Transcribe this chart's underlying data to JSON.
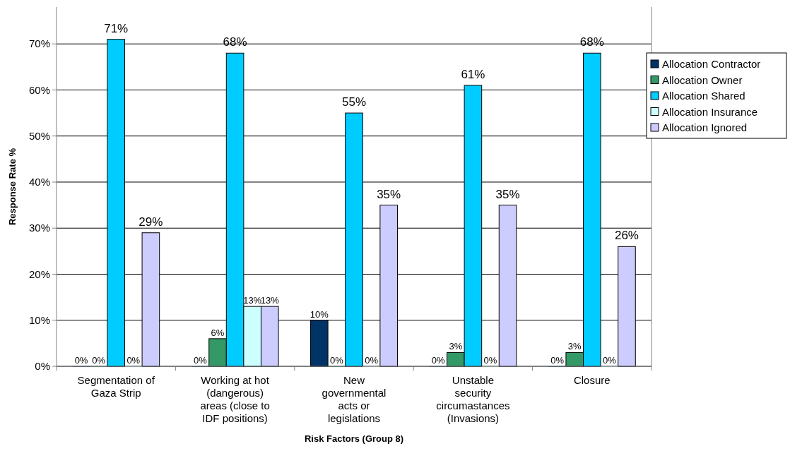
{
  "chart_data": {
    "type": "bar",
    "xlabel": "Risk Factors (Group 8)",
    "ylabel": "Response Rate %",
    "categories": [
      "Segmentation of Gaza Strip",
      "Working at hot (dangerous) areas (close to IDF positions)",
      "New governmental acts or legislations",
      "Unstable security circumastances (Invasions)",
      "Closure"
    ],
    "series": [
      {
        "name": "Allocation Contractor",
        "color": "#003366",
        "values": [
          0,
          0,
          10,
          0,
          0
        ],
        "value_labels": [
          "0%",
          "0%",
          "10%",
          "0%",
          "0%"
        ]
      },
      {
        "name": "Allocation Owner",
        "color": "#339966",
        "values": [
          0,
          6,
          0,
          3,
          3
        ],
        "value_labels": [
          "0%",
          "6%",
          "0%",
          "3%",
          "3%"
        ]
      },
      {
        "name": "Allocation Shared",
        "color": "#00ccff",
        "values": [
          71,
          68,
          55,
          61,
          68
        ],
        "value_labels": [
          "71%",
          "68%",
          "55%",
          "61%",
          "68%"
        ]
      },
      {
        "name": "Allocation Insurance",
        "color": "#ccffff",
        "values": [
          0,
          13,
          0,
          0,
          0
        ],
        "value_labels": [
          "0%",
          "13%",
          "0%",
          "0%",
          "0%"
        ]
      },
      {
        "name": "Allocation Ignored",
        "color": "#ccccff",
        "values": [
          29,
          13,
          35,
          35,
          26
        ],
        "value_labels": [
          "29%",
          "13%",
          "35%",
          "35%",
          "26%"
        ]
      }
    ],
    "ylim": [
      0,
      78
    ],
    "yticks": [
      {
        "value": 0,
        "label": "0%"
      },
      {
        "value": 10,
        "label": "10%"
      },
      {
        "value": 20,
        "label": "20%"
      },
      {
        "value": 30,
        "label": "30%"
      },
      {
        "value": 40,
        "label": "40%"
      },
      {
        "value": 50,
        "label": "50%"
      },
      {
        "value": 60,
        "label": "60%"
      },
      {
        "value": 70,
        "label": "70%"
      }
    ],
    "grid": "y",
    "legend": "right"
  }
}
